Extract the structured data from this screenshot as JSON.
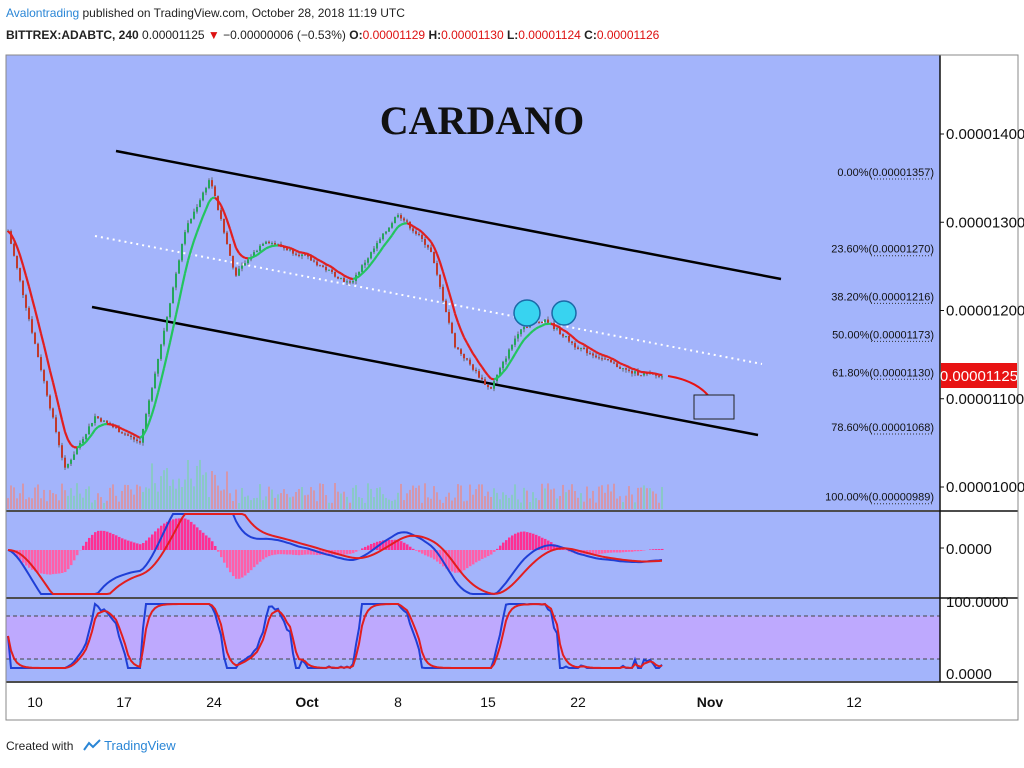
{
  "header": {
    "author": "Avalontrading",
    "published_text": " published on TradingView.com, October 28, 2018 11:19 UTC",
    "symbol": "BITTREX:ADABTC, 240",
    "last": "0.00001125",
    "change": "−0.00000006 (−0.53%)",
    "o_label": "O:",
    "o": "0.00001129",
    "h_label": "H:",
    "h": "0.00001130",
    "l_label": "L:",
    "l": "0.00001124",
    "c_label": "C:",
    "c": "0.00001126"
  },
  "footer": {
    "created_with": "Created with",
    "brand": "TradingView"
  },
  "colors": {
    "background": "#a3b4fb",
    "bull": "#22c55e",
    "bear": "#dc2626",
    "ema": "#e21e1e",
    "macd": "#1f3fd6",
    "signal": "#e21e1e",
    "stoch_band": "#c7a6ff",
    "price_tag": "#e81313",
    "highlight_circle": "#38d3f0"
  },
  "chart_data": {
    "type": "candlestick",
    "title": "CARDANO",
    "symbol": "BITTREX:ADABTC",
    "interval": "240",
    "price_axis": {
      "ticks": [
        "0.00001400",
        "0.00001300",
        "0.00001200",
        "0.00001100",
        "0.00001000"
      ],
      "range": [
        9.75e-06,
        1.46e-05
      ]
    },
    "last_price_label": "0.00001125",
    "time_axis": {
      "ticks": [
        "10",
        "17",
        "24",
        "Oct",
        "8",
        "15",
        "22",
        "Nov",
        "12"
      ]
    },
    "fib_levels": [
      {
        "label": "0.00%",
        "value": "0.00001357"
      },
      {
        "label": "23.60%",
        "value": "0.00001270"
      },
      {
        "label": "38.20%",
        "value": "0.00001216"
      },
      {
        "label": "50.00%",
        "value": "0.00001173"
      },
      {
        "label": "61.80%",
        "value": "0.00001130"
      },
      {
        "label": "78.60%",
        "value": "0.00001068"
      },
      {
        "label": "100.00%",
        "value": "0.00000989"
      }
    ],
    "price_path": [
      [
        "10",
        1.29e-05
      ],
      [
        "12",
        1.02e-05
      ],
      [
        "14",
        1.08e-05
      ],
      [
        "17",
        1.05e-05
      ],
      [
        "20",
        1.29e-05
      ],
      [
        "22",
        1.35e-05
      ],
      [
        "24",
        1.24e-05
      ],
      [
        "26",
        1.28e-05
      ],
      [
        "Oct",
        1.26e-05
      ],
      [
        "4",
        1.23e-05
      ],
      [
        "8",
        1.31e-05
      ],
      [
        "10",
        1.27e-05
      ],
      [
        "12",
        1.16e-05
      ],
      [
        "15",
        1.11e-05
      ],
      [
        "18",
        1.18e-05
      ],
      [
        "20",
        1.19e-05
      ],
      [
        "22",
        1.16e-05
      ],
      [
        "26",
        1.13e-05
      ],
      [
        "28",
        1.125e-05
      ]
    ],
    "channel": {
      "upper": [
        [
          1.41e-05,
          1.265e-05
        ]
      ],
      "lower": [
        [
          1.22e-05,
          1.06e-05
        ]
      ]
    },
    "macd_axis": {
      "ticks": [
        "0.0000"
      ]
    },
    "stoch_axis": {
      "ticks": [
        "100.0000",
        "0.0000"
      ],
      "range": [
        0,
        100
      ]
    }
  }
}
